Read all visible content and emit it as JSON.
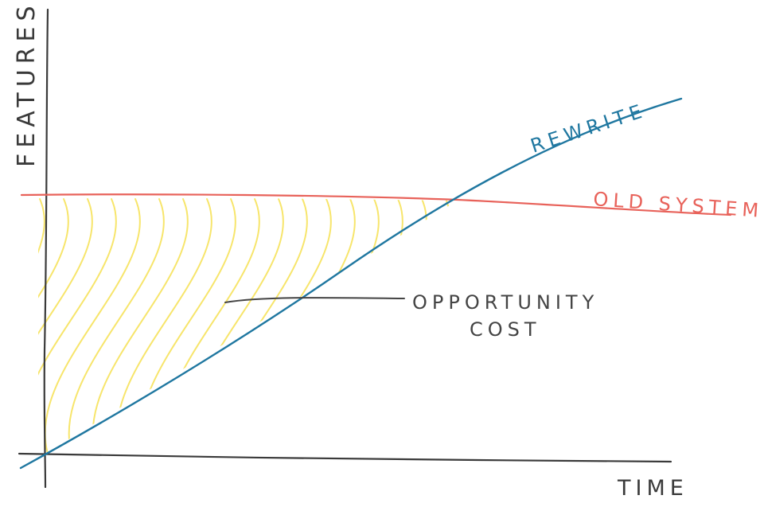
{
  "diagram": {
    "y_axis_label": "FEATURES",
    "x_axis_label": "TIME",
    "rewrite_label": "REWRITE",
    "old_system_label": "OLD SYSTEM",
    "annotation": {
      "line1": "OPPORTUNITY",
      "line2": "COST"
    },
    "colors": {
      "axes": "#3a3a3a",
      "rewrite": "#1f77a0",
      "old_system": "#e8625a",
      "hatch": "#f7e56b",
      "annotation": "#444444"
    }
  }
}
